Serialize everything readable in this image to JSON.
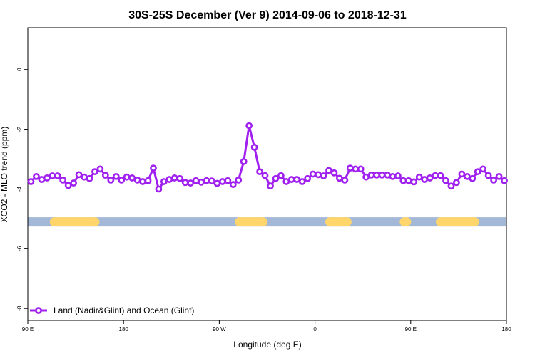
{
  "chart_data": {
    "type": "line",
    "title": "30S-25S December (Ver 9)   2014-09-06 to 2018-12-31",
    "xlabel": "Longitude (deg E)",
    "ylabel": "XCO2 - MLO trend (ppm)",
    "xlim": [
      90,
      540
    ],
    "ylim": [
      -8.4,
      1.4
    ],
    "x_ticks": [
      {
        "value": 90,
        "label": "90 E"
      },
      {
        "value": 180,
        "label": "180"
      },
      {
        "value": 270,
        "label": "90 W"
      },
      {
        "value": 360,
        "label": "0"
      },
      {
        "value": 450,
        "label": "90 E"
      },
      {
        "value": 540,
        "label": "180"
      }
    ],
    "y_ticks": [
      {
        "value": 0,
        "label": "0"
      },
      {
        "value": -2,
        "label": "-2"
      },
      {
        "value": -4,
        "label": "-4"
      },
      {
        "value": -6,
        "label": "-6"
      },
      {
        "value": -8,
        "label": "-8"
      }
    ],
    "grid": false,
    "legend_position": "bottom-left",
    "series": [
      {
        "name": "Land (Nadir&Glint) and Ocean (Glint)",
        "color": "#a020f0",
        "x": [
          93,
          98,
          103,
          108,
          113,
          118,
          123,
          128,
          133,
          138,
          143,
          148,
          153,
          158,
          163,
          168,
          173,
          178,
          183,
          188,
          193,
          198,
          203,
          208,
          213,
          218,
          223,
          228,
          233,
          238,
          243,
          248,
          253,
          258,
          263,
          268,
          273,
          278,
          283,
          288,
          293,
          298,
          303,
          308,
          313,
          318,
          323,
          328,
          333,
          338,
          343,
          348,
          353,
          358,
          363,
          368,
          373,
          378,
          383,
          388,
          393,
          398,
          403,
          408,
          413,
          418,
          423,
          428,
          433,
          438,
          443,
          448,
          453,
          458,
          463,
          468,
          473,
          478,
          483,
          488,
          493,
          498,
          503,
          508,
          513,
          518,
          523,
          528,
          533,
          538
        ],
        "values": [
          -3.75,
          -3.58,
          -3.68,
          -3.63,
          -3.56,
          -3.56,
          -3.7,
          -3.88,
          -3.8,
          -3.52,
          -3.6,
          -3.65,
          -3.42,
          -3.33,
          -3.54,
          -3.7,
          -3.58,
          -3.7,
          -3.6,
          -3.63,
          -3.7,
          -3.75,
          -3.72,
          -3.3,
          -4.0,
          -3.75,
          -3.68,
          -3.63,
          -3.65,
          -3.78,
          -3.8,
          -3.72,
          -3.77,
          -3.72,
          -3.73,
          -3.81,
          -3.75,
          -3.72,
          -3.85,
          -3.7,
          -3.08,
          -1.88,
          -2.6,
          -3.42,
          -3.55,
          -3.9,
          -3.65,
          -3.55,
          -3.75,
          -3.68,
          -3.68,
          -3.75,
          -3.65,
          -3.5,
          -3.52,
          -3.56,
          -3.38,
          -3.46,
          -3.64,
          -3.7,
          -3.3,
          -3.33,
          -3.33,
          -3.6,
          -3.53,
          -3.53,
          -3.53,
          -3.53,
          -3.58,
          -3.56,
          -3.72,
          -3.72,
          -3.76,
          -3.6,
          -3.68,
          -3.63,
          -3.55,
          -3.55,
          -3.72,
          -3.9,
          -3.78,
          -3.5,
          -3.58,
          -3.65,
          -3.42,
          -3.33,
          -3.55,
          -3.7,
          -3.58,
          -3.72
        ]
      }
    ],
    "surface_band": {
      "y": -5.1,
      "ocean_color": "#a3b8d7",
      "land_color": "#ffd56c",
      "land_ranges": [
        [
          115,
          153
        ],
        [
          289,
          311
        ],
        [
          374,
          390
        ],
        [
          444,
          446
        ],
        [
          478,
          510
        ]
      ]
    }
  }
}
